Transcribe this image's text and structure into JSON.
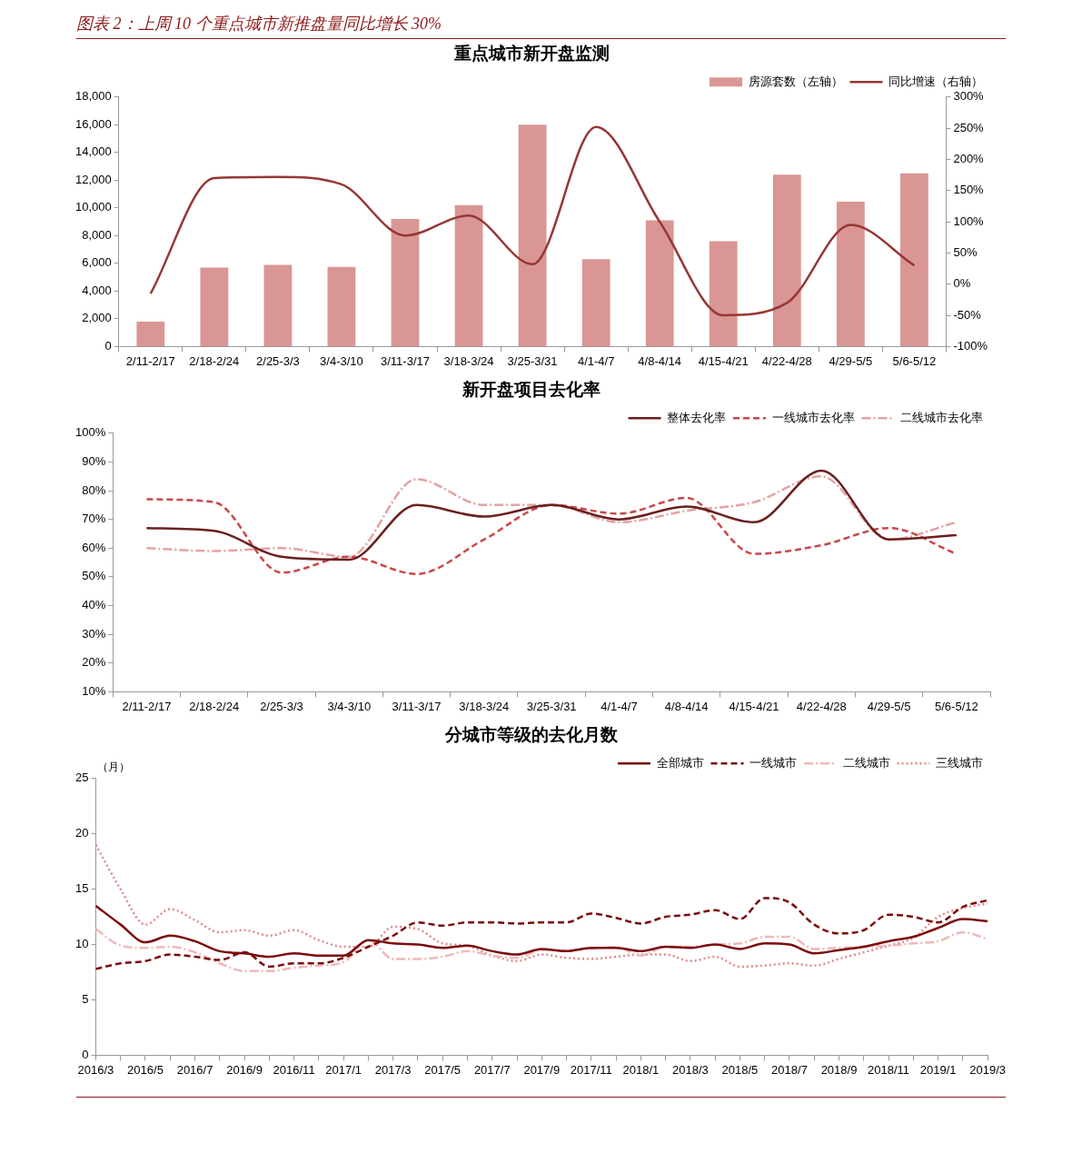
{
  "chart_data": [
    {
      "type": "bar",
      "title": "重点城市新开盘监测",
      "annotations": [
        "图表 2：上周 10 个重点城市新推盘量同比增长 30%"
      ],
      "categories": [
        "2/11-2/17",
        "2/18-2/24",
        "2/25-3/3",
        "3/4-3/10",
        "3/11-3/17",
        "3/18-3/24",
        "3/25-3/31",
        "4/1-4/7",
        "4/8-4/14",
        "4/15-4/21",
        "4/22-4/28",
        "4/29-5/5",
        "5/6-5/12"
      ],
      "series": [
        {
          "name": "房源套数（左轴）",
          "color": "#d99694",
          "values": [
            1800,
            5700,
            5900,
            5750,
            9200,
            10200,
            16000,
            6300,
            9100,
            7600,
            12400,
            10450,
            12500
          ]
        },
        {
          "name": "同比增速（右轴）",
          "type": "line",
          "axis": "y2",
          "line_style": "solid",
          "color": "#953735",
          "values": [
            -15,
            170,
            172,
            160,
            78,
            110,
            32,
            252,
            100,
            -50,
            -30,
            95,
            30
          ]
        }
      ],
      "ylim": [
        0,
        18000
      ],
      "yticks": [
        {
          "value": 0,
          "label": "0"
        },
        {
          "value": 2000,
          "label": "2,000"
        },
        {
          "value": 4000,
          "label": "4,000"
        },
        {
          "value": 6000,
          "label": "6,000"
        },
        {
          "value": 8000,
          "label": "8,000"
        },
        {
          "value": 10000,
          "label": "10,000"
        },
        {
          "value": 12000,
          "label": "12,000"
        },
        {
          "value": 14000,
          "label": "14,000"
        },
        {
          "value": 16000,
          "label": "16,000"
        },
        {
          "value": 18000,
          "label": "18,000"
        }
      ],
      "y2lim": [
        -100,
        300
      ],
      "y2ticks": [
        {
          "value": -100,
          "label": "-100%"
        },
        {
          "value": -50,
          "label": "-50%"
        },
        {
          "value": 0,
          "label": "0%"
        },
        {
          "value": 50,
          "label": "50%"
        },
        {
          "value": 100,
          "label": "100%"
        },
        {
          "value": 150,
          "label": "150%"
        },
        {
          "value": 200,
          "label": "200%"
        },
        {
          "value": 250,
          "label": "250%"
        },
        {
          "value": 300,
          "label": "300%"
        }
      ],
      "marker": "none",
      "grid": false,
      "legend": "top right"
    },
    {
      "type": "line",
      "title": "新开盘项目去化率",
      "categories": [
        "2/11-2/17",
        "2/18-2/24",
        "2/25-3/3",
        "3/4-3/10",
        "3/11-3/17",
        "3/18-3/24",
        "3/25-3/31",
        "4/1-4/7",
        "4/8-4/14",
        "4/15-4/21",
        "4/22-4/28",
        "4/29-5/5",
        "5/6-5/12"
      ],
      "series": [
        {
          "name": "整体去化率",
          "line_style": "solid",
          "color": "#6b1f1f",
          "values": [
            67,
            66,
            57,
            56,
            75,
            71,
            75,
            70,
            74.5,
            69,
            87,
            63,
            64.5
          ]
        },
        {
          "name": "一线城市去化率",
          "line_style": "dashed",
          "color": "#c9474a",
          "values": [
            77,
            76,
            51.5,
            57,
            51,
            63,
            75,
            72,
            77.5,
            58,
            61,
            67,
            58
          ]
        },
        {
          "name": "二线城市去化率",
          "line_style": "dashdot",
          "color": "#e3a3a3",
          "values": [
            60,
            59,
            60,
            57,
            84,
            75,
            75,
            69,
            73,
            76,
            85,
            63,
            69
          ]
        }
      ],
      "ylim": [
        10,
        100
      ],
      "yticks": [
        {
          "value": 10,
          "label": "10%"
        },
        {
          "value": 20,
          "label": "20%"
        },
        {
          "value": 30,
          "label": "30%"
        },
        {
          "value": 40,
          "label": "40%"
        },
        {
          "value": 50,
          "label": "50%"
        },
        {
          "value": 60,
          "label": "60%"
        },
        {
          "value": 70,
          "label": "70%"
        },
        {
          "value": 80,
          "label": "80%"
        },
        {
          "value": 90,
          "label": "90%"
        },
        {
          "value": 100,
          "label": "100%"
        }
      ],
      "marker": "none",
      "grid": false,
      "legend": "top right"
    },
    {
      "type": "line",
      "title": "分城市等级的去化月数",
      "ylabel": "（月）",
      "categories": [
        "2016/3",
        null,
        "2016/5",
        null,
        "2016/7",
        null,
        "2016/9",
        null,
        "2016/11",
        null,
        "2017/1",
        null,
        "2017/3",
        null,
        "2017/5",
        null,
        "2017/7",
        null,
        "2017/9",
        null,
        "2017/11",
        null,
        "2018/1",
        null,
        "2018/3",
        null,
        "2018/5",
        null,
        "2018/7",
        null,
        "2018/9",
        null,
        "2018/11",
        null,
        "2019/1",
        null,
        "2019/3"
      ],
      "series": [
        {
          "name": "全部城市",
          "line_style": "solid",
          "color": "#7b0c0c",
          "values": [
            13.5,
            11.8,
            10.2,
            10.8,
            10.3,
            9.4,
            9.2,
            8.9,
            9.2,
            9.0,
            9.0,
            10.4,
            10.1,
            10.0,
            9.7,
            9.9,
            9.4,
            9.1,
            9.6,
            9.4,
            9.7,
            9.7,
            9.4,
            9.8,
            9.7,
            10.0,
            9.6,
            10.1,
            10.0,
            9.2,
            9.5,
            9.8,
            10.3,
            10.7,
            11.5,
            12.3,
            12.1
          ]
        },
        {
          "name": "一线城市",
          "line_style": "dashed",
          "color": "#7b0c0c",
          "values": [
            7.8,
            8.3,
            8.5,
            9.1,
            8.9,
            8.6,
            9.3,
            8.0,
            8.3,
            8.3,
            8.8,
            9.8,
            10.8,
            12.0,
            11.7,
            12.0,
            12.0,
            11.9,
            12.0,
            12.0,
            12.8,
            12.4,
            11.9,
            12.5,
            12.7,
            13.1,
            12.3,
            14.2,
            13.8,
            11.8,
            11.0,
            11.3,
            12.7,
            12.5,
            12.0,
            13.4,
            14.0
          ]
        },
        {
          "name": "二线城市",
          "line_style": "dashdot",
          "color": "#f0b8b8",
          "values": [
            11.4,
            9.9,
            9.7,
            9.8,
            9.3,
            8.3,
            7.6,
            7.6,
            7.9,
            8.1,
            8.4,
            10.4,
            8.7,
            8.7,
            8.9,
            9.4,
            9.0,
            8.8,
            9.5,
            9.5,
            9.6,
            9.8,
            9.0,
            9.8,
            9.8,
            10.0,
            10.1,
            10.7,
            10.7,
            9.6,
            9.7,
            9.8,
            9.9,
            10.1,
            10.3,
            11.1,
            10.5
          ]
        },
        {
          "name": "三线城市",
          "line_style": "dotted",
          "color": "#e08a8a",
          "values": [
            19.0,
            15.0,
            11.8,
            13.2,
            12.2,
            11.1,
            11.3,
            10.8,
            11.3,
            10.4,
            9.8,
            9.8,
            11.6,
            11.4,
            10.1,
            9.9,
            9.0,
            8.5,
            9.1,
            8.8,
            8.7,
            8.9,
            9.1,
            9.1,
            8.5,
            8.9,
            8.0,
            8.1,
            8.3,
            8.1,
            8.7,
            9.3,
            9.9,
            10.6,
            12.5,
            13.3,
            13.7
          ]
        }
      ],
      "ylim": [
        0,
        25
      ],
      "yticks": [
        0,
        5,
        10,
        15,
        20,
        25
      ],
      "marker": "none",
      "grid": false,
      "legend": "top right"
    }
  ]
}
